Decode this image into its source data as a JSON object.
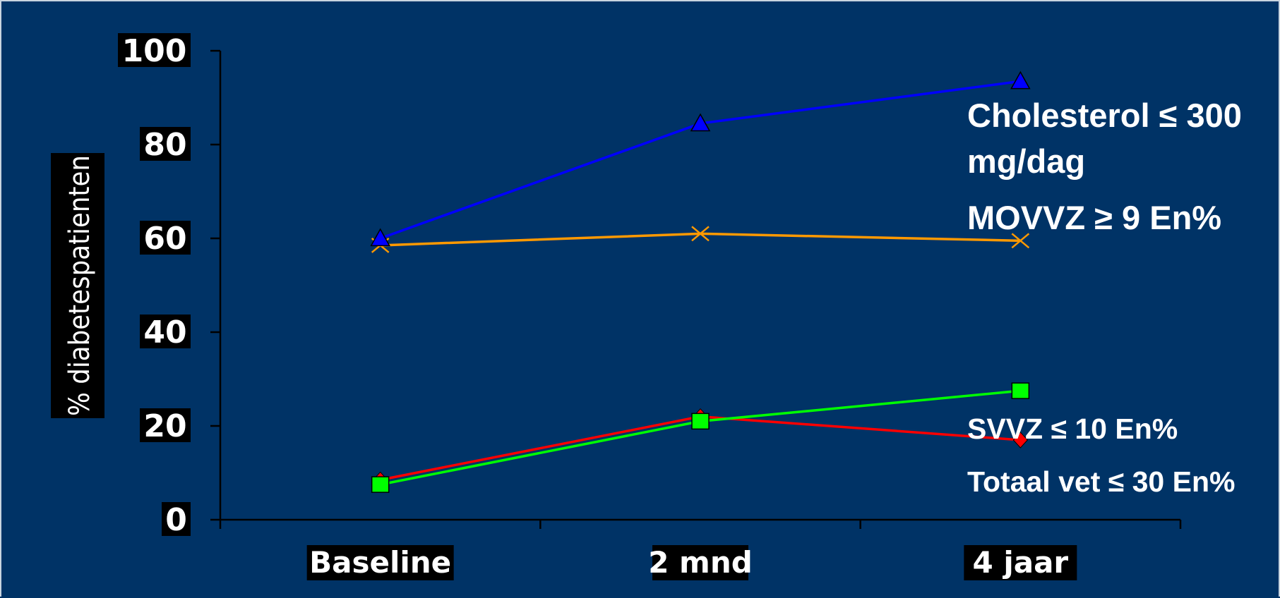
{
  "chart_data": {
    "type": "line",
    "categories": [
      "Baseline",
      "2 mnd",
      "4 jaar"
    ],
    "ylabel": "% diabetespatienten",
    "ylim": [
      0,
      100
    ],
    "yticks": [
      "0",
      "20",
      "40",
      "60",
      "80",
      "100"
    ],
    "grid": false,
    "legend": "right, labels beside series",
    "series": [
      {
        "name": "Cholesterol ≤ 300 mg/dag",
        "label_lines": [
          "Cholesterol ≤ 300",
          "mg/dag"
        ],
        "color": "#0000ff",
        "marker": "triangle",
        "values": [
          60,
          84.5,
          93.5
        ]
      },
      {
        "name": "MOVVZ ≥ 9 En%",
        "label_lines": [
          "MOVVZ ≥ 9 En%"
        ],
        "color": "#ff9900",
        "marker": "x",
        "values": [
          58.5,
          61,
          59.5
        ]
      },
      {
        "name": "SVVZ ≤ 10 En%",
        "label_lines": [
          "SVVZ ≤ 10 En%"
        ],
        "color": "#00ff00",
        "marker": "square",
        "values": [
          7.5,
          21,
          27.5
        ]
      },
      {
        "name": "Totaal vet ≤  30 En%",
        "label_lines": [
          "Totaal vet ≤  30 En%"
        ],
        "color": "#ff0000",
        "marker": "diamond",
        "values": [
          8.5,
          22,
          17
        ]
      }
    ]
  }
}
